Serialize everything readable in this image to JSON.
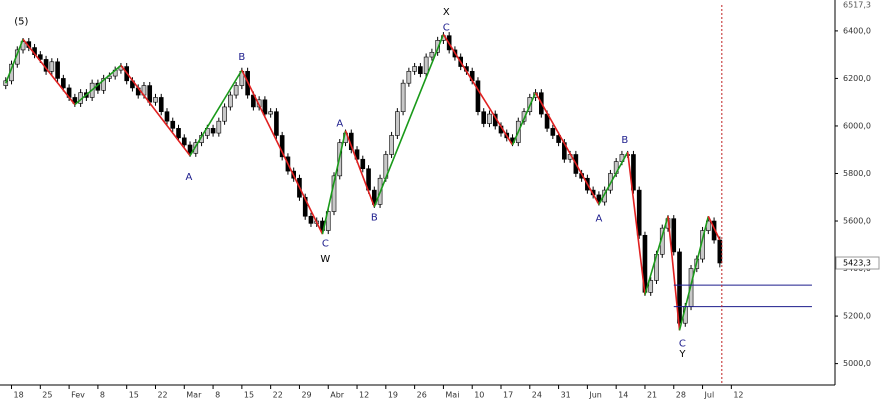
{
  "chart_data": {
    "type": "candlestick",
    "ylim": [
      4910,
      6530
    ],
    "xlim": [
      -1,
      144
    ],
    "yticks": [
      {
        "value": 5000,
        "label": "5000,0"
      },
      {
        "value": 5200,
        "label": "5200,0"
      },
      {
        "value": 5400,
        "label": "5400,0"
      },
      {
        "value": 5600,
        "label": "5600,0"
      },
      {
        "value": 5800,
        "label": "5800,0"
      },
      {
        "value": 6000,
        "label": "6000,0"
      },
      {
        "value": 6200,
        "label": "6200,0"
      },
      {
        "value": 6400,
        "label": "6400,0"
      }
    ],
    "xticks": [
      {
        "value": 1,
        "label": "18"
      },
      {
        "value": 6,
        "label": "25"
      },
      {
        "value": 11,
        "label": "Fev"
      },
      {
        "value": 16,
        "label": "8"
      },
      {
        "value": 21,
        "label": "15"
      },
      {
        "value": 26,
        "label": "22"
      },
      {
        "value": 31,
        "label": "Mar"
      },
      {
        "value": 36,
        "label": "8"
      },
      {
        "value": 41,
        "label": "15"
      },
      {
        "value": 46,
        "label": "22"
      },
      {
        "value": 51,
        "label": "29"
      },
      {
        "value": 56,
        "label": "Abr"
      },
      {
        "value": 61,
        "label": "12"
      },
      {
        "value": 66,
        "label": "19"
      },
      {
        "value": 71,
        "label": "26"
      },
      {
        "value": 76,
        "label": "Mai"
      },
      {
        "value": 81,
        "label": "10"
      },
      {
        "value": 86,
        "label": "17"
      },
      {
        "value": 91,
        "label": "24"
      },
      {
        "value": 96,
        "label": "31"
      },
      {
        "value": 101,
        "label": "Jun"
      },
      {
        "value": 106,
        "label": "14"
      },
      {
        "value": 111,
        "label": "21"
      },
      {
        "value": 116,
        "label": "28"
      },
      {
        "value": 121,
        "label": "Jul"
      },
      {
        "value": 126,
        "label": "12"
      }
    ],
    "up_color": "#c8c8c8",
    "down_color": "#000000",
    "open": [
      6170,
      6190,
      6260,
      6320,
      6355,
      6330,
      6300,
      6280,
      6230,
      6270,
      6200,
      6160,
      6120,
      6095,
      6140,
      6120,
      6180,
      6150,
      6200,
      6210,
      6235,
      6250,
      6190,
      6160,
      6130,
      6170,
      6100,
      6120,
      6060,
      6020,
      5990,
      5950,
      5920,
      5885,
      5930,
      5960,
      5990,
      5970,
      6020,
      6080,
      6130,
      6170,
      6230,
      6130,
      6080,
      6110,
      6050,
      6060,
      5960,
      5870,
      5810,
      5780,
      5700,
      5620,
      5590,
      5600,
      5560,
      5640,
      5790,
      5930,
      5970,
      5900,
      5860,
      5820,
      5730,
      5670,
      5780,
      5880,
      5960,
      6060,
      6180,
      6230,
      6250,
      6220,
      6290,
      6310,
      6360,
      6380,
      6320,
      6290,
      6250,
      6230,
      6190,
      6060,
      6010,
      6050,
      6000,
      5970,
      5950,
      5930,
      6020,
      6060,
      6120,
      6140,
      6050,
      5990,
      5960,
      5930,
      5860,
      5880,
      5800,
      5780,
      5730,
      5710,
      5680,
      5730,
      5800,
      5850,
      5880,
      5880,
      5730,
      5540,
      5300,
      5350,
      5460,
      5570,
      5610,
      5470,
      5170,
      5240,
      5400,
      5440,
      5560,
      5600,
      5520
    ],
    "high": [
      6205,
      6275,
      6335,
      6370,
      6370,
      6345,
      6315,
      6295,
      6285,
      6285,
      6215,
      6175,
      6135,
      6155,
      6155,
      6195,
      6195,
      6215,
      6225,
      6250,
      6265,
      6265,
      6205,
      6175,
      6185,
      6185,
      6135,
      6135,
      6075,
      6035,
      6005,
      5965,
      5935,
      5945,
      5975,
      6005,
      6005,
      6035,
      6095,
      6145,
      6185,
      6245,
      6245,
      6145,
      6125,
      6125,
      6075,
      6075,
      5975,
      5885,
      5825,
      5795,
      5715,
      5635,
      5615,
      5615,
      5655,
      5805,
      5945,
      5985,
      5985,
      5915,
      5875,
      5835,
      5745,
      5795,
      5895,
      5975,
      6075,
      6195,
      6245,
      6265,
      6265,
      6305,
      6325,
      6375,
      6395,
      6395,
      6335,
      6305,
      6265,
      6245,
      6205,
      6075,
      6065,
      6065,
      6015,
      5985,
      5965,
      6035,
      6075,
      6135,
      6155,
      6155,
      6065,
      6005,
      5975,
      5945,
      5895,
      5895,
      5815,
      5795,
      5745,
      5725,
      5745,
      5815,
      5865,
      5895,
      5895,
      5895,
      5745,
      5555,
      5365,
      5475,
      5585,
      5625,
      5625,
      5485,
      5255,
      5415,
      5455,
      5575,
      5620,
      5615,
      5535
    ],
    "low": [
      6155,
      6175,
      6245,
      6305,
      6315,
      6285,
      6265,
      6215,
      6215,
      6185,
      6145,
      6105,
      6080,
      6080,
      6105,
      6105,
      6135,
      6135,
      6185,
      6195,
      6220,
      6175,
      6145,
      6115,
      6115,
      6085,
      6085,
      6045,
      6005,
      5975,
      5935,
      5905,
      5870,
      5870,
      5915,
      5945,
      5955,
      5955,
      6005,
      6065,
      6115,
      6155,
      6115,
      6065,
      6065,
      6035,
      6035,
      5945,
      5855,
      5795,
      5765,
      5685,
      5605,
      5575,
      5575,
      5545,
      5545,
      5625,
      5775,
      5915,
      5885,
      5845,
      5805,
      5715,
      5655,
      5655,
      5765,
      5865,
      5945,
      6045,
      6165,
      6215,
      6205,
      6205,
      6275,
      6295,
      6345,
      6305,
      6275,
      6235,
      6215,
      6175,
      6045,
      5995,
      5995,
      5985,
      5955,
      5935,
      5915,
      5915,
      6005,
      6045,
      6105,
      6035,
      5975,
      5945,
      5915,
      5845,
      5845,
      5785,
      5765,
      5715,
      5695,
      5665,
      5665,
      5715,
      5785,
      5835,
      5865,
      5715,
      5525,
      5285,
      5285,
      5335,
      5445,
      5555,
      5455,
      5140,
      5155,
      5225,
      5385,
      5425,
      5545,
      5505,
      5405
    ],
    "close": [
      6190,
      6260,
      6320,
      6355,
      6330,
      6300,
      6280,
      6230,
      6270,
      6200,
      6160,
      6120,
      6095,
      6140,
      6120,
      6180,
      6150,
      6200,
      6210,
      6235,
      6250,
      6190,
      6160,
      6130,
      6170,
      6100,
      6120,
      6060,
      6020,
      5990,
      5950,
      5920,
      5885,
      5930,
      5960,
      5990,
      5970,
      6020,
      6080,
      6130,
      6170,
      6230,
      6130,
      6080,
      6110,
      6050,
      6060,
      5960,
      5870,
      5810,
      5780,
      5700,
      5620,
      5590,
      5600,
      5560,
      5640,
      5790,
      5930,
      5970,
      5900,
      5860,
      5820,
      5730,
      5670,
      5780,
      5880,
      5960,
      6060,
      6180,
      6230,
      6250,
      6220,
      6290,
      6310,
      6360,
      6380,
      6320,
      6290,
      6250,
      6230,
      6190,
      6060,
      6010,
      6050,
      6000,
      5970,
      5950,
      5930,
      6020,
      6060,
      6120,
      6140,
      6050,
      5990,
      5960,
      5930,
      5860,
      5880,
      5800,
      5780,
      5730,
      5710,
      5680,
      5730,
      5800,
      5850,
      5880,
      5880,
      5730,
      5540,
      5300,
      5350,
      5460,
      5570,
      5610,
      5470,
      5170,
      5240,
      5400,
      5440,
      5560,
      5600,
      5520,
      5423.3
    ],
    "pivots": {
      "x": [
        0,
        3,
        12,
        20,
        32,
        41,
        55,
        59,
        64,
        76,
        88,
        92,
        103,
        108,
        111,
        115,
        117,
        122,
        124
      ],
      "values": [
        6180,
        6365,
        6090,
        6255,
        5875,
        6235,
        5545,
        5980,
        5660,
        6385,
        5920,
        6140,
        5670,
        5890,
        5290,
        5620,
        5140,
        5620,
        5520
      ],
      "up_color": "#1a9a1a",
      "down_color": "#e02020"
    },
    "annotations": [
      {
        "text": "(5)",
        "x": 2.7,
        "y": 6440,
        "color": "#000000"
      },
      {
        "text": "A",
        "x": 31.8,
        "y": 5785,
        "color": "#1c1c8c"
      },
      {
        "text": "B",
        "x": 41,
        "y": 6290,
        "color": "#1c1c8c"
      },
      {
        "text": "C",
        "x": 55.5,
        "y": 5505,
        "color": "#1c1c8c"
      },
      {
        "text": "W",
        "x": 55.5,
        "y": 5440,
        "color": "#000000"
      },
      {
        "text": "A",
        "x": 58,
        "y": 6010,
        "color": "#1c1c8c"
      },
      {
        "text": "B",
        "x": 64,
        "y": 5615,
        "color": "#1c1c8c"
      },
      {
        "text": "X",
        "x": 76.5,
        "y": 6480,
        "color": "#000000"
      },
      {
        "text": "C",
        "x": 76.5,
        "y": 6415,
        "color": "#1c1c8c"
      },
      {
        "text": "A",
        "x": 103,
        "y": 5610,
        "color": "#1c1c8c"
      },
      {
        "text": "B",
        "x": 107.5,
        "y": 5940,
        "color": "#1c1c8c"
      },
      {
        "text": "C",
        "x": 117.5,
        "y": 5085,
        "color": "#1c1c8c"
      },
      {
        "text": "Y",
        "x": 117.5,
        "y": 5040,
        "color": "#000000"
      }
    ],
    "levels": {
      "values": [
        5330,
        5240
      ],
      "x": [
        116,
        140
      ],
      "color": "#1c1c8c"
    },
    "marker_x": 124,
    "last_price": {
      "value": 5423.3,
      "label": "5423,3"
    },
    "high_label": {
      "value": 6517.3,
      "label": "6517,3"
    }
  }
}
